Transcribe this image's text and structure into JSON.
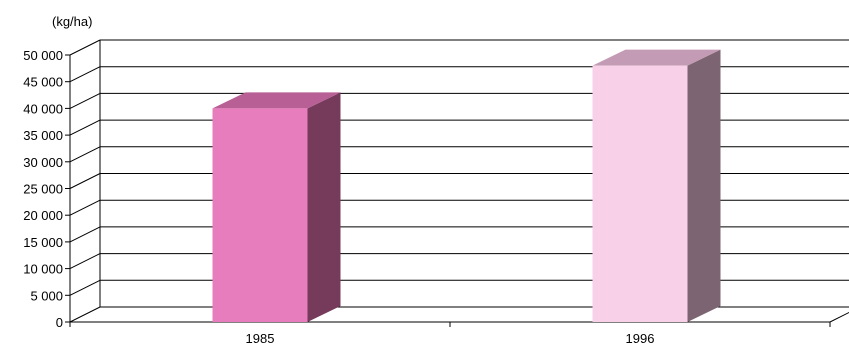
{
  "chart_data": {
    "type": "bar",
    "title": "",
    "unit_label": "(kg/ha)",
    "xlabel": "",
    "ylabel": "",
    "categories": [
      "1985",
      "1996"
    ],
    "values": [
      40000,
      48000
    ],
    "ylim": [
      0,
      50000
    ],
    "yticks": [
      0,
      5000,
      10000,
      15000,
      20000,
      25000,
      30000,
      35000,
      40000,
      45000,
      50000
    ],
    "ytick_labels": [
      "0",
      "5 000",
      "10 000",
      "15 000",
      "20 000",
      "25 000",
      "30 000",
      "35 000",
      "40 000",
      "45 000",
      "50 000"
    ],
    "grid": true,
    "three_d": true,
    "colors": {
      "bars": [
        "#e87dbd",
        "#f8d0e8"
      ],
      "bar_tops": [
        "#b86096",
        "#c49bb4"
      ],
      "bar_sides": [
        "#763a5b",
        "#7d6472"
      ],
      "grid": "#000000",
      "background": "#ffffff"
    }
  }
}
